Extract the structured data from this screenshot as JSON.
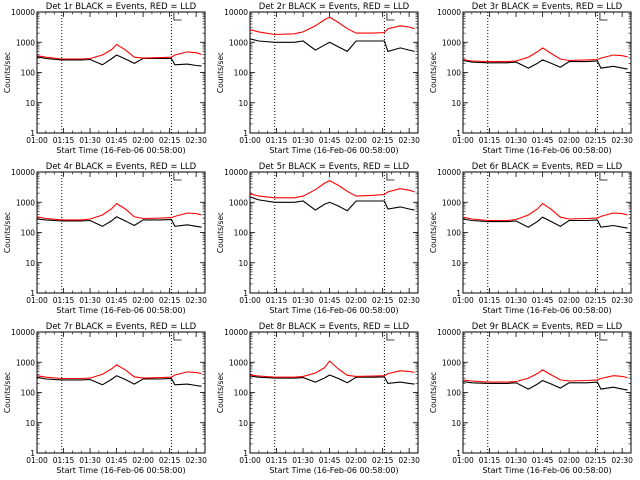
{
  "chart_data": {
    "type": "line",
    "x_time_labels": [
      "01:00",
      "01:15",
      "01:30",
      "01:45",
      "02:00",
      "02:15",
      "02:30"
    ],
    "x_minutes_from_start": [
      0,
      15,
      30,
      45,
      60,
      75,
      90
    ],
    "xlim_minutes": [
      0,
      95
    ],
    "xlabel": "Start Time (16-Feb-06 00:58:00)",
    "ylabel": "Counts/sec",
    "yscale": "log",
    "ylim": [
      1,
      10000
    ],
    "y_tick_labels": [
      "1",
      "10",
      "100",
      "1000",
      "10000"
    ],
    "y_tick_values": [
      1,
      10,
      100,
      1000,
      10000
    ],
    "vertical_dotted_lines_minutes": [
      14,
      76
    ],
    "series_colors": {
      "Events": "#000000",
      "LLD": "#ff0000"
    },
    "panels": [
      {
        "title": "Det 1r BLACK = Events, RED = LLD",
        "series": [
          {
            "name": "Events",
            "x": [
              0,
              5,
              14,
              25,
              30,
              37,
              42,
              45,
              50,
              55,
              60,
              70,
              76,
              78,
              85,
              90,
              93
            ],
            "values": [
              330,
              290,
              260,
              260,
              270,
              180,
              280,
              380,
              280,
              200,
              290,
              290,
              290,
              180,
              190,
              170,
              165
            ]
          },
          {
            "name": "LLD",
            "x": [
              0,
              5,
              14,
              25,
              30,
              37,
              42,
              45,
              50,
              55,
              60,
              70,
              76,
              78,
              85,
              90,
              93
            ],
            "values": [
              360,
              320,
              280,
              280,
              290,
              380,
              560,
              850,
              560,
              320,
              300,
              310,
              320,
              380,
              480,
              450,
              400
            ]
          }
        ]
      },
      {
        "title": "Det 2r BLACK = Events, RED = LLD",
        "series": [
          {
            "name": "Events",
            "x": [
              0,
              5,
              14,
              25,
              30,
              37,
              42,
              45,
              50,
              55,
              60,
              70,
              76,
              78,
              85,
              90,
              93
            ],
            "values": [
              1300,
              1100,
              1000,
              1000,
              1100,
              550,
              800,
              1000,
              700,
              500,
              1100,
              1100,
              1100,
              500,
              650,
              550,
              500
            ]
          },
          {
            "name": "LLD",
            "x": [
              0,
              5,
              14,
              25,
              30,
              37,
              42,
              45,
              50,
              55,
              60,
              70,
              76,
              78,
              85,
              90,
              93
            ],
            "values": [
              2600,
              2200,
              1800,
              1900,
              2200,
              3500,
              5500,
              6800,
              4500,
              2800,
              2000,
              2000,
              2100,
              2800,
              3500,
              3200,
              2800
            ]
          }
        ]
      },
      {
        "title": "Det 3r BLACK = Events, RED = LLD",
        "series": [
          {
            "name": "Events",
            "x": [
              0,
              5,
              14,
              25,
              30,
              37,
              42,
              45,
              50,
              55,
              60,
              70,
              76,
              78,
              85,
              90,
              93
            ],
            "values": [
              250,
              220,
              210,
              210,
              220,
              140,
              200,
              260,
              200,
              150,
              230,
              230,
              240,
              140,
              160,
              140,
              130
            ]
          },
          {
            "name": "LLD",
            "x": [
              0,
              5,
              14,
              25,
              30,
              37,
              42,
              45,
              50,
              55,
              60,
              70,
              76,
              78,
              85,
              90,
              93
            ],
            "values": [
              270,
              240,
              230,
              230,
              240,
              320,
              480,
              650,
              420,
              280,
              250,
              260,
              270,
              300,
              380,
              360,
              330
            ]
          }
        ]
      },
      {
        "title": "Det 4r BLACK = Events, RED = LLD",
        "series": [
          {
            "name": "Events",
            "x": [
              0,
              5,
              14,
              25,
              30,
              37,
              42,
              45,
              50,
              55,
              60,
              70,
              76,
              78,
              85,
              90,
              93
            ],
            "values": [
              280,
              260,
              240,
              240,
              250,
              160,
              240,
              330,
              240,
              170,
              260,
              260,
              270,
              160,
              180,
              160,
              150
            ]
          },
          {
            "name": "LLD",
            "x": [
              0,
              5,
              14,
              25,
              30,
              37,
              42,
              45,
              50,
              55,
              60,
              70,
              76,
              78,
              85,
              90,
              93
            ],
            "values": [
              330,
              290,
              260,
              260,
              280,
              380,
              600,
              900,
              600,
              330,
              290,
              300,
              310,
              340,
              440,
              420,
              380
            ]
          }
        ]
      },
      {
        "title": "Det 5r BLACK = Events, RED = LLD",
        "series": [
          {
            "name": "Events",
            "x": [
              0,
              5,
              14,
              25,
              30,
              37,
              42,
              45,
              50,
              55,
              60,
              70,
              76,
              78,
              85,
              90,
              93
            ],
            "values": [
              1500,
              1200,
              1000,
              1000,
              1100,
              550,
              850,
              1000,
              750,
              520,
              1100,
              1100,
              1100,
              600,
              700,
              600,
              550
            ]
          },
          {
            "name": "LLD",
            "x": [
              0,
              5,
              14,
              25,
              30,
              37,
              42,
              45,
              50,
              55,
              60,
              70,
              76,
              78,
              85,
              90,
              93
            ],
            "values": [
              1900,
              1600,
              1400,
              1400,
              1600,
              2600,
              4200,
              5200,
              3600,
              2300,
              1600,
              1700,
              1800,
              2200,
              2800,
              2500,
              2200
            ]
          }
        ]
      },
      {
        "title": "Det 6r BLACK = Events, RED = LLD",
        "series": [
          {
            "name": "Events",
            "x": [
              0,
              5,
              14,
              25,
              30,
              37,
              42,
              45,
              50,
              55,
              60,
              70,
              76,
              78,
              85,
              90,
              93
            ],
            "values": [
              280,
              250,
              230,
              230,
              240,
              150,
              230,
              320,
              230,
              160,
              250,
              250,
              260,
              150,
              170,
              150,
              140
            ]
          },
          {
            "name": "LLD",
            "x": [
              0,
              5,
              14,
              25,
              30,
              37,
              42,
              45,
              50,
              55,
              60,
              70,
              76,
              78,
              85,
              90,
              93
            ],
            "values": [
              320,
              280,
              250,
              250,
              270,
              380,
              600,
              900,
              580,
              320,
              280,
              290,
              300,
              340,
              440,
              420,
              380
            ]
          }
        ]
      },
      {
        "title": "Det 7r BLACK = Events, RED = LLD",
        "series": [
          {
            "name": "Events",
            "x": [
              0,
              5,
              14,
              25,
              30,
              37,
              42,
              45,
              50,
              55,
              60,
              70,
              76,
              78,
              85,
              90,
              93
            ],
            "values": [
              320,
              280,
              260,
              260,
              270,
              180,
              270,
              360,
              270,
              190,
              280,
              280,
              290,
              180,
              190,
              170,
              160
            ]
          },
          {
            "name": "LLD",
            "x": [
              0,
              5,
              14,
              25,
              30,
              37,
              42,
              45,
              50,
              55,
              60,
              70,
              76,
              78,
              85,
              90,
              93
            ],
            "values": [
              360,
              320,
              290,
              290,
              300,
              400,
              600,
              820,
              560,
              330,
              300,
              310,
              320,
              380,
              480,
              460,
              420
            ]
          }
        ]
      },
      {
        "title": "Det 8r BLACK = Events, RED = LLD",
        "series": [
          {
            "name": "Events",
            "x": [
              0,
              5,
              14,
              25,
              30,
              37,
              42,
              45,
              50,
              55,
              60,
              70,
              76,
              78,
              85,
              90,
              93
            ],
            "values": [
              350,
              320,
              300,
              300,
              310,
              220,
              300,
              380,
              290,
              210,
              320,
              320,
              330,
              200,
              220,
              200,
              190
            ]
          },
          {
            "name": "LLD",
            "x": [
              0,
              5,
              14,
              25,
              30,
              37,
              42,
              45,
              50,
              55,
              60,
              70,
              76,
              78,
              85,
              90,
              93
            ],
            "values": [
              380,
              350,
              320,
              320,
              340,
              440,
              650,
              1100,
              600,
              370,
              340,
              350,
              360,
              420,
              520,
              500,
              460
            ]
          }
        ]
      },
      {
        "title": "Det 9r BLACK = Events, RED = LLD",
        "series": [
          {
            "name": "Events",
            "x": [
              0,
              5,
              14,
              25,
              30,
              37,
              42,
              45,
              50,
              55,
              60,
              70,
              76,
              78,
              85,
              90,
              93
            ],
            "values": [
              230,
              210,
              200,
              200,
              210,
              130,
              190,
              250,
              190,
              140,
              210,
              210,
              220,
              130,
              150,
              130,
              120
            ]
          },
          {
            "name": "LLD",
            "x": [
              0,
              5,
              14,
              25,
              30,
              37,
              42,
              45,
              50,
              55,
              60,
              70,
              76,
              78,
              85,
              90,
              93
            ],
            "values": [
              260,
              240,
              220,
              220,
              230,
              300,
              420,
              560,
              380,
              260,
              240,
              250,
              260,
              290,
              360,
              340,
              310
            ]
          }
        ]
      }
    ]
  }
}
